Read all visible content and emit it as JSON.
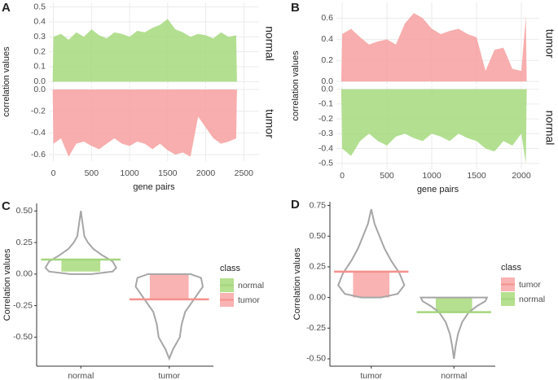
{
  "chart_data": [
    {
      "type": "facet-bar",
      "panel": "A",
      "xlabel": "gene pairs",
      "ylabel": "correlation values",
      "xlim": [
        -60,
        2700
      ],
      "xticks": [
        0,
        500,
        1000,
        1500,
        2000,
        2500
      ],
      "x": [
        0,
        100,
        200,
        300,
        400,
        500,
        600,
        700,
        800,
        900,
        1000,
        1100,
        1200,
        1300,
        1400,
        1500,
        1600,
        1700,
        1800,
        1900,
        2000,
        2100,
        2200,
        2300,
        2400
      ],
      "facets": [
        {
          "name": "normal",
          "color": "#a6d97e",
          "ylim": [
            -0.02,
            0.53
          ],
          "yticks": [
            {
              "value": 0,
              "label": "0.0"
            },
            0.1,
            0.2,
            0.3,
            0.4,
            0.5
          ],
          "values": [
            0.3,
            0.32,
            0.28,
            0.33,
            0.3,
            0.35,
            0.31,
            0.29,
            0.33,
            0.32,
            0.3,
            0.34,
            0.33,
            0.36,
            0.38,
            0.42,
            0.35,
            0.33,
            0.3,
            0.32,
            0.31,
            0.29,
            0.33,
            0.3,
            0.31
          ]
        },
        {
          "name": "tumor",
          "color": "#f7a0a0",
          "ylim": [
            -0.66,
            0.03
          ],
          "yticks": [
            {
              "value": 0,
              "label": "0.0"
            },
            -0.2,
            -0.4,
            -0.6
          ],
          "values": [
            -0.5,
            -0.45,
            -0.62,
            -0.5,
            -0.48,
            -0.52,
            -0.55,
            -0.5,
            -0.45,
            -0.5,
            -0.52,
            -0.48,
            -0.5,
            -0.55,
            -0.5,
            -0.56,
            -0.6,
            -0.58,
            -0.62,
            -0.25,
            -0.35,
            -0.45,
            -0.5,
            -0.48,
            -0.45
          ]
        }
      ]
    },
    {
      "type": "facet-bar",
      "panel": "B",
      "xlabel": "gene pairs",
      "ylabel": "correlation values",
      "xlim": [
        -64,
        2200
      ],
      "xticks": [
        0,
        500,
        1000,
        1500,
        2000
      ],
      "x": [
        0,
        100,
        200,
        300,
        400,
        500,
        600,
        700,
        800,
        900,
        1000,
        1100,
        1200,
        1300,
        1400,
        1500,
        1600,
        1700,
        1800,
        1900,
        2000,
        2050
      ],
      "facets": [
        {
          "name": "tumor",
          "color": "#f7a0a0",
          "ylim": [
            -0.03,
            0.75
          ],
          "yticks": [
            {
              "value": 0,
              "label": "0.0"
            },
            0.2,
            0.4,
            0.6
          ],
          "values": [
            0.45,
            0.5,
            0.42,
            0.35,
            0.38,
            0.4,
            0.35,
            0.55,
            0.65,
            0.6,
            0.5,
            0.45,
            0.48,
            0.5,
            0.45,
            0.42,
            0.1,
            0.3,
            0.32,
            0.12,
            0.1,
            0.62
          ]
        },
        {
          "name": "normal",
          "color": "#a6d97e",
          "ylim": [
            -0.54,
            0.02
          ],
          "yticks": [
            {
              "value": 0,
              "label": "0.0"
            },
            -0.1,
            -0.2,
            -0.3,
            -0.4,
            -0.5
          ],
          "values": [
            -0.4,
            -0.45,
            -0.35,
            -0.3,
            -0.35,
            -0.38,
            -0.32,
            -0.3,
            -0.33,
            -0.35,
            -0.3,
            -0.32,
            -0.35,
            -0.3,
            -0.33,
            -0.35,
            -0.4,
            -0.42,
            -0.35,
            -0.38,
            -0.3,
            -0.5
          ]
        }
      ]
    },
    {
      "type": "violin",
      "panel": "C",
      "ylabel": "Correlation values",
      "legend_title": "class",
      "ylim": [
        -0.73,
        0.56
      ],
      "yticks": [
        {
          "value": 0.5,
          "label": "0.50"
        },
        {
          "value": 0.25,
          "label": "0.25"
        },
        {
          "value": 0,
          "label": "0.00"
        },
        {
          "value": -0.25,
          "label": "-0.25"
        },
        {
          "value": -0.5,
          "label": "-0.50"
        }
      ],
      "categories": [
        "normal",
        "tumor"
      ],
      "violins": [
        {
          "name": "normal",
          "color": "#b5e08f",
          "line_color": "#a3d67e",
          "box": {
            "q1": 0.02,
            "q3": 0.11,
            "mean": 0.115
          },
          "y": [
            0.0,
            0.02,
            0.05,
            0.1,
            0.15,
            0.2,
            0.25,
            0.3,
            0.4,
            0.5
          ],
          "width": [
            0.3,
            0.9,
            1.0,
            0.9,
            0.6,
            0.35,
            0.2,
            0.1,
            0.05,
            0.0
          ]
        },
        {
          "name": "tumor",
          "color": "#f9b3b3",
          "line_color": "#f4928e",
          "box": {
            "q1": -0.2,
            "q3": 0.0,
            "mean": -0.2
          },
          "y": [
            0.0,
            -0.03,
            -0.1,
            -0.2,
            -0.3,
            -0.4,
            -0.5,
            -0.6,
            -0.67
          ],
          "width": [
            0.6,
            0.9,
            0.95,
            0.7,
            0.45,
            0.35,
            0.3,
            0.1,
            0.0
          ]
        }
      ]
    },
    {
      "type": "violin",
      "panel": "D",
      "ylabel": "Correlation values",
      "legend_title": "class",
      "ylim": [
        -0.56,
        0.78
      ],
      "yticks": [
        {
          "value": 0.75,
          "label": "0.75"
        },
        {
          "value": 0.5,
          "label": "0.50"
        },
        {
          "value": 0.25,
          "label": "0.25"
        },
        {
          "value": 0,
          "label": "0.00"
        },
        {
          "value": -0.25,
          "label": "-0.25"
        },
        {
          "value": -0.5,
          "label": "-0.50"
        }
      ],
      "categories": [
        "tumor",
        "normal"
      ],
      "violins": [
        {
          "name": "tumor",
          "color": "#f9b3b3",
          "line_color": "#f4928e",
          "box": {
            "q1": 0.0,
            "q3": 0.21,
            "mean": 0.21
          },
          "y": [
            0.0,
            0.03,
            0.1,
            0.2,
            0.3,
            0.4,
            0.5,
            0.6,
            0.72
          ],
          "width": [
            0.3,
            0.8,
            1.0,
            0.85,
            0.6,
            0.4,
            0.25,
            0.1,
            0.0
          ]
        },
        {
          "name": "normal",
          "color": "#b5e08f",
          "line_color": "#a3d67e",
          "box": {
            "q1": -0.12,
            "q3": 0.0,
            "mean": -0.12
          },
          "y": [
            0.0,
            -0.03,
            -0.07,
            -0.12,
            -0.2,
            -0.3,
            -0.4,
            -0.5
          ],
          "width": [
            1.0,
            0.95,
            0.7,
            0.45,
            0.25,
            0.12,
            0.05,
            0.0
          ]
        }
      ]
    }
  ]
}
